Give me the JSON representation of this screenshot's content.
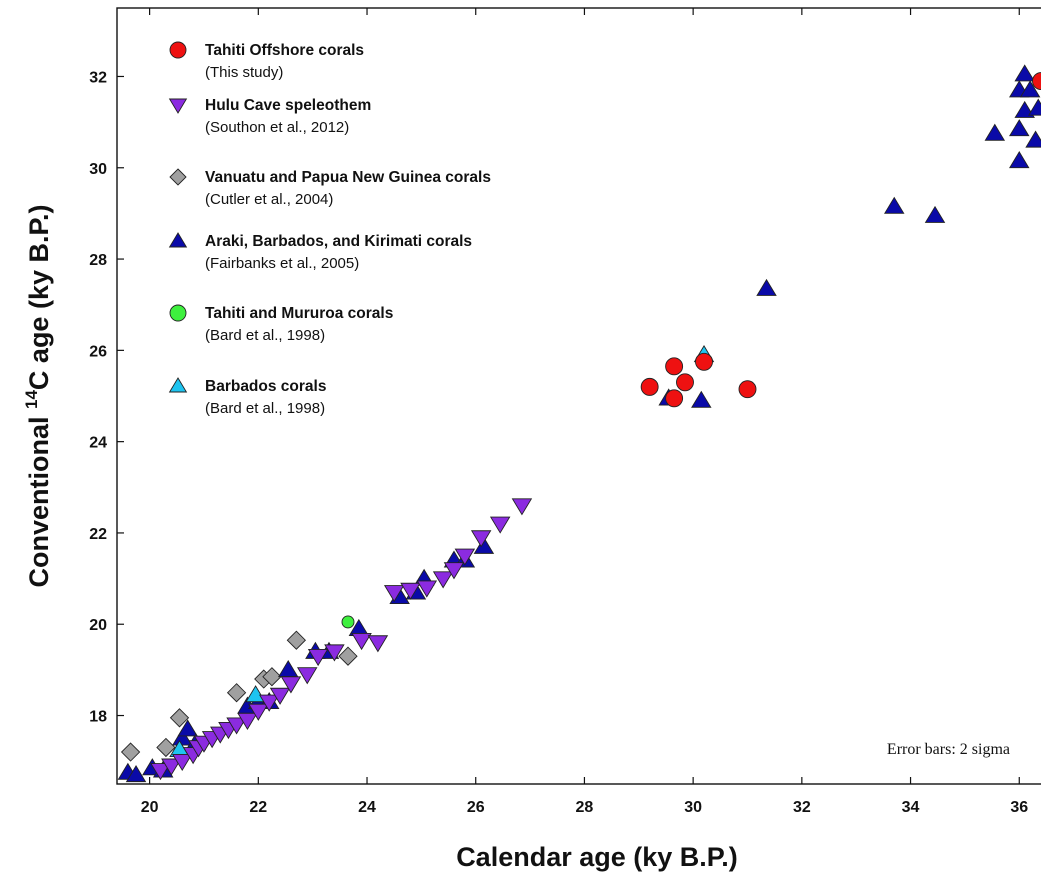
{
  "chart_data": {
    "type": "scatter",
    "xlabel": "Calendar  age (ky B.P.)",
    "ylabel_prefix": "Conventional ",
    "ylabel_sup": "14",
    "ylabel_suffix": "C age  (ky B.P.)",
    "xlim": [
      19.4,
      36.4
    ],
    "ylim": [
      16.5,
      33.5
    ],
    "xticks": [
      20,
      22,
      24,
      26,
      28,
      30,
      32,
      34,
      36
    ],
    "yticks": [
      18,
      20,
      22,
      24,
      26,
      28,
      30,
      32
    ],
    "annotation": "Error bars: 2 sigma",
    "grid": false,
    "legend_position": "top-left",
    "series": [
      {
        "name": "Tahiti Offshore corals",
        "ref": "(This study)",
        "marker": "circle",
        "color": "#ee1111",
        "points": [
          [
            29.2,
            25.2
          ],
          [
            29.65,
            25.65
          ],
          [
            29.65,
            24.95
          ],
          [
            29.85,
            25.3
          ],
          [
            30.2,
            25.75
          ],
          [
            31.0,
            25.15
          ],
          [
            36.4,
            31.9
          ]
        ]
      },
      {
        "name": "Hulu Cave speleothem",
        "ref": "(Southon et al., 2012)",
        "marker": "triangle-down",
        "color": "#8b2be0",
        "points": [
          [
            20.2,
            16.8
          ],
          [
            20.4,
            16.9
          ],
          [
            20.6,
            17.0
          ],
          [
            20.8,
            17.15
          ],
          [
            20.9,
            17.3
          ],
          [
            21.0,
            17.4
          ],
          [
            21.15,
            17.5
          ],
          [
            21.3,
            17.6
          ],
          [
            21.45,
            17.7
          ],
          [
            21.6,
            17.8
          ],
          [
            21.8,
            17.9
          ],
          [
            22.0,
            18.1
          ],
          [
            22.2,
            18.3
          ],
          [
            22.4,
            18.45
          ],
          [
            22.6,
            18.7
          ],
          [
            22.9,
            18.9
          ],
          [
            23.1,
            19.3
          ],
          [
            23.4,
            19.4
          ],
          [
            23.9,
            19.65
          ],
          [
            24.2,
            19.6
          ],
          [
            24.5,
            20.7
          ],
          [
            24.8,
            20.75
          ],
          [
            25.1,
            20.8
          ],
          [
            25.4,
            21.0
          ],
          [
            25.6,
            21.2
          ],
          [
            25.8,
            21.5
          ],
          [
            26.1,
            21.9
          ],
          [
            26.45,
            22.2
          ],
          [
            26.85,
            22.6
          ]
        ]
      },
      {
        "name": "Vanuatu and Papua New Guinea corals",
        "ref": "(Cutler et al., 2004)",
        "marker": "diamond",
        "color": "#a0a0a0",
        "points": [
          [
            19.65,
            17.2
          ],
          [
            20.3,
            17.3
          ],
          [
            20.55,
            17.95
          ],
          [
            21.6,
            18.5
          ],
          [
            22.1,
            18.8
          ],
          [
            22.25,
            18.85
          ],
          [
            22.7,
            19.65
          ],
          [
            23.65,
            19.3
          ]
        ]
      },
      {
        "name": "Araki, Barbados, and Kirimati corals",
        "ref": "(Fairbanks et al., 2005)",
        "marker": "triangle-up",
        "color": "#0a0aa8",
        "points": [
          [
            19.6,
            16.75
          ],
          [
            19.75,
            16.7
          ],
          [
            20.05,
            16.85
          ],
          [
            20.25,
            16.8
          ],
          [
            20.6,
            17.5
          ],
          [
            20.7,
            17.7
          ],
          [
            20.85,
            17.4
          ],
          [
            21.8,
            18.2
          ],
          [
            22.0,
            18.3
          ],
          [
            22.2,
            18.3
          ],
          [
            22.55,
            19.0
          ],
          [
            23.05,
            19.4
          ],
          [
            23.3,
            19.4
          ],
          [
            23.85,
            19.9
          ],
          [
            24.6,
            20.6
          ],
          [
            24.9,
            20.7
          ],
          [
            25.05,
            21.0
          ],
          [
            25.6,
            21.4
          ],
          [
            25.8,
            21.4
          ],
          [
            26.15,
            21.7
          ],
          [
            29.55,
            24.95
          ],
          [
            30.15,
            24.9
          ],
          [
            31.35,
            27.35
          ],
          [
            33.7,
            29.15
          ],
          [
            34.45,
            28.95
          ],
          [
            35.55,
            30.75
          ],
          [
            36.0,
            30.85
          ],
          [
            36.0,
            30.15
          ],
          [
            36.0,
            31.7
          ],
          [
            36.1,
            31.25
          ],
          [
            36.1,
            32.05
          ],
          [
            36.2,
            31.7
          ],
          [
            36.3,
            30.6
          ],
          [
            36.35,
            31.3
          ]
        ]
      },
      {
        "name": "Tahiti and Mururoa corals",
        "ref": "(Bard et al., 1998)",
        "marker": "circle",
        "color": "#3ef03e",
        "points": [
          [
            23.65,
            20.05
          ]
        ]
      },
      {
        "name": "Barbados corals",
        "ref": "(Bard et al., 1998)",
        "marker": "triangle-up",
        "color": "#1ec4f0",
        "points": [
          [
            20.55,
            17.25
          ],
          [
            21.95,
            18.45
          ],
          [
            30.2,
            25.9
          ]
        ]
      }
    ]
  }
}
